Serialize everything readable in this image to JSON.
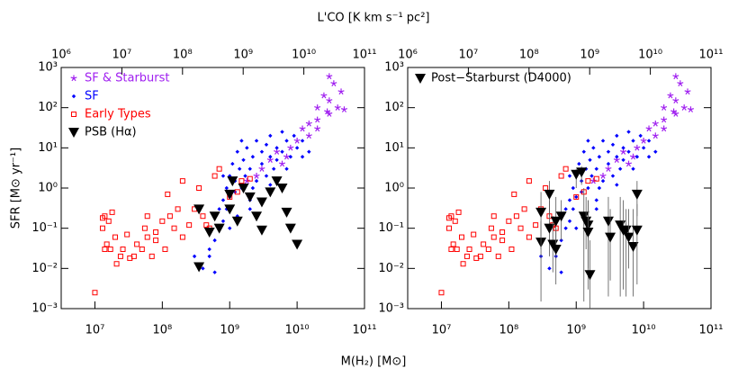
{
  "chart_data": [
    {
      "type": "scatter",
      "xlog": true,
      "ylog": true,
      "legend": "upper left",
      "x2label": "L'CO [K km s⁻¹ pc²]",
      "xlabel": "M(H₂) [M⊙]",
      "ylabel": "SFR [M⊙ yr⁻¹]",
      "xlim": [
        3160000.0,
        100000000000.0
      ],
      "ylim": [
        0.001,
        1000
      ],
      "x2lim": [
        1000000.0,
        100000000000.0
      ],
      "xticks": [
        {
          "value": 10000000.0,
          "label": "10⁷"
        },
        {
          "value": 100000000.0,
          "label": "10⁸"
        },
        {
          "value": 1000000000.0,
          "label": "10⁹"
        },
        {
          "value": 10000000000.0,
          "label": "10¹⁰"
        },
        {
          "value": 100000000000.0,
          "label": "10¹¹"
        }
      ],
      "x2ticks": [
        {
          "value": 1000000.0,
          "label": "10⁶"
        },
        {
          "value": 10000000.0,
          "label": "10⁷"
        },
        {
          "value": 100000000.0,
          "label": "10⁸"
        },
        {
          "value": 1000000000.0,
          "label": "10⁹"
        },
        {
          "value": 10000000000.0,
          "label": "10¹⁰"
        },
        {
          "value": 100000000000.0,
          "label": "10¹¹"
        }
      ],
      "yticks": [
        {
          "value": 0.001,
          "label": "10⁻³"
        },
        {
          "value": 0.01,
          "label": "10⁻²"
        },
        {
          "value": 0.1,
          "label": "10⁻¹"
        },
        {
          "value": 1,
          "label": "10⁰"
        },
        {
          "value": 10,
          "label": "10¹"
        },
        {
          "value": 100,
          "label": "10²"
        },
        {
          "value": 1000,
          "label": "10³"
        }
      ],
      "series": [
        {
          "name": "SF & Starburst",
          "color": "#a020f0",
          "marker": "star",
          "x": [
            3000000000.0,
            4000000000.0,
            5000000000.0,
            6000000000.0,
            8000000000.0,
            10000000000.0,
            12000000000.0,
            15000000000.0,
            20000000000.0,
            20000000000.0,
            25000000000.0,
            30000000000.0,
            30000000000.0,
            35000000000.0,
            40000000000.0,
            45000000000.0,
            50000000000.0,
            30000000000.0,
            20000000000.0,
            15000000000.0,
            2500000000.0,
            7000000000.0,
            1800000000.0,
            28000000000.0
          ],
          "y": [
            3,
            5,
            8,
            4,
            10,
            15,
            30,
            20,
            50,
            100,
            200,
            70,
            150,
            400,
            100,
            250,
            90,
            600,
            30,
            40,
            2,
            6,
            1.5,
            80
          ]
        },
        {
          "name": "SF",
          "color": "#0000ff",
          "marker": "diamond",
          "x": [
            500000000.0,
            600000000.0,
            700000000.0,
            700000000.0,
            800000000.0,
            800000000.0,
            900000000.0,
            900000000.0,
            1000000000.0,
            1000000000.0,
            1100000000.0,
            1200000000.0,
            1200000000.0,
            1300000000.0,
            1400000000.0,
            1500000000.0,
            1600000000.0,
            1700000000.0,
            1800000000.0,
            2000000000.0,
            2000000000.0,
            2200000000.0,
            2500000000.0,
            2500000000.0,
            3000000000.0,
            3000000000.0,
            3500000000.0,
            3500000000.0,
            4000000000.0,
            4000000000.0,
            4500000000.0,
            5000000000.0,
            5000000000.0,
            6000000000.0,
            6000000000.0,
            7000000000.0,
            7000000000.0,
            8000000000.0,
            9000000000.0,
            10000000000.0,
            12000000000.0,
            15000000000.0,
            400000000.0,
            500000000.0,
            600000000.0,
            300000000.0,
            1000000000.0,
            1300000000.0,
            2000000000.0,
            800000000.0,
            1500000000.0,
            2200000000.0,
            600000000.0,
            4000000000.0,
            12000000000.0
          ],
          "y": [
            0.02,
            0.05,
            0.1,
            0.3,
            0.5,
            0.15,
            1,
            0.3,
            2,
            0.6,
            4,
            1.5,
            0.8,
            8,
            3,
            1,
            5,
            2,
            10,
            0.5,
            3,
            6,
            15,
            1.5,
            4,
            8,
            2,
            12,
            6,
            20,
            3,
            10,
            5,
            25,
            8,
            3,
            15,
            6,
            20,
            10,
            6,
            8,
            0.01,
            0.03,
            0.008,
            0.02,
            0.1,
            0.2,
            0.3,
            2,
            15,
            1,
            0.2,
            1.2,
            15
          ]
        },
        {
          "name": "Early Types",
          "color": "#ff0000",
          "marker": "square",
          "x": [
            10000000.0,
            13000000.0,
            14000000.0,
            13000000.0,
            15000000.0,
            14000000.0,
            16000000.0,
            17000000.0,
            18000000.0,
            20000000.0,
            21000000.0,
            24000000.0,
            26000000.0,
            30000000.0,
            33000000.0,
            38000000.0,
            42000000.0,
            50000000.0,
            55000000.0,
            60000000.0,
            60000000.0,
            70000000.0,
            80000000.0,
            80000000.0,
            100000000.0,
            110000000.0,
            120000000.0,
            130000000.0,
            150000000.0,
            170000000.0,
            200000000.0,
            200000000.0,
            250000000.0,
            300000000.0,
            350000000.0,
            400000000.0,
            450000000.0,
            500000000.0,
            600000000.0,
            700000000.0,
            1000000000.0,
            1500000000.0,
            1300000000.0,
            2000000000.0
          ],
          "y": [
            0.0025,
            0.18,
            0.2,
            0.1,
            0.04,
            0.03,
            0.15,
            0.03,
            0.25,
            0.06,
            0.013,
            0.02,
            0.03,
            0.07,
            0.018,
            0.02,
            0.04,
            0.03,
            0.1,
            0.2,
            0.06,
            0.02,
            0.05,
            0.08,
            0.15,
            0.03,
            0.7,
            0.2,
            0.1,
            0.3,
            1.5,
            0.06,
            0.12,
            0.3,
            1,
            0.2,
            0.12,
            0.1,
            2,
            3,
            0.6,
            1.5,
            0.8,
            1.7
          ]
        },
        {
          "name": "PSB (Hα)",
          "color": "#000000",
          "marker": "triangle",
          "x": [
            350000000.0,
            350000000.0,
            500000000.0,
            600000000.0,
            700000000.0,
            1000000000.0,
            1000000000.0,
            1100000000.0,
            1300000000.0,
            1600000000.0,
            2000000000.0,
            2500000000.0,
            3000000000.0,
            3000000000.0,
            4000000000.0,
            5000000000.0,
            6000000000.0,
            7000000000.0,
            8000000000.0,
            10000000000.0
          ],
          "y": [
            0.3,
            0.011,
            0.08,
            0.2,
            0.1,
            0.7,
            0.3,
            1.5,
            0.15,
            1,
            0.6,
            0.2,
            0.09,
            0.45,
            0.8,
            1.5,
            1,
            0.25,
            0.1,
            0.04
          ]
        }
      ]
    },
    {
      "type": "scatter",
      "xlog": true,
      "ylog": true,
      "legend": "upper left",
      "xlim": [
        3160000.0,
        100000000000.0
      ],
      "ylim": [
        0.001,
        1000
      ],
      "x2lim": [
        1000000.0,
        100000000000.0
      ],
      "xticks": [
        {
          "value": 10000000.0,
          "label": "10⁷"
        },
        {
          "value": 100000000.0,
          "label": "10⁸"
        },
        {
          "value": 1000000000.0,
          "label": "10⁹"
        },
        {
          "value": 10000000000.0,
          "label": "10¹⁰"
        },
        {
          "value": 100000000000.0,
          "label": "10¹¹"
        }
      ],
      "x2ticks": [
        {
          "value": 1000000.0,
          "label": "10⁶"
        },
        {
          "value": 10000000.0,
          "label": "10⁷"
        },
        {
          "value": 100000000.0,
          "label": "10⁸"
        },
        {
          "value": 1000000000.0,
          "label": "10⁹"
        },
        {
          "value": 10000000000.0,
          "label": "10¹⁰"
        },
        {
          "value": 100000000000.0,
          "label": "10¹¹"
        }
      ],
      "yticks": [
        {
          "value": 0.001,
          "label": "10⁻³"
        },
        {
          "value": 0.01,
          "label": "10⁻²"
        },
        {
          "value": 0.1,
          "label": "10⁻¹"
        },
        {
          "value": 1,
          "label": "10⁰"
        },
        {
          "value": 10,
          "label": "10¹"
        },
        {
          "value": 100,
          "label": "10²"
        },
        {
          "value": 1000,
          "label": "10³"
        }
      ],
      "series": [
        {
          "color": "#a020f0",
          "marker": "star",
          "x": [
            3000000000.0,
            4000000000.0,
            5000000000.0,
            6000000000.0,
            8000000000.0,
            10000000000.0,
            12000000000.0,
            15000000000.0,
            20000000000.0,
            20000000000.0,
            25000000000.0,
            30000000000.0,
            30000000000.0,
            35000000000.0,
            40000000000.0,
            45000000000.0,
            50000000000.0,
            30000000000.0,
            20000000000.0,
            15000000000.0,
            2500000000.0,
            7000000000.0,
            1800000000.0,
            28000000000.0
          ],
          "y": [
            3,
            5,
            8,
            4,
            10,
            15,
            30,
            20,
            50,
            100,
            200,
            70,
            150,
            400,
            100,
            250,
            90,
            600,
            30,
            40,
            2,
            6,
            1.5,
            80
          ]
        },
        {
          "color": "#0000ff",
          "marker": "diamond",
          "x": [
            500000000.0,
            600000000.0,
            700000000.0,
            700000000.0,
            800000000.0,
            800000000.0,
            900000000.0,
            900000000.0,
            1000000000.0,
            1000000000.0,
            1100000000.0,
            1200000000.0,
            1200000000.0,
            1300000000.0,
            1400000000.0,
            1500000000.0,
            1600000000.0,
            1700000000.0,
            1800000000.0,
            2000000000.0,
            2000000000.0,
            2200000000.0,
            2500000000.0,
            2500000000.0,
            3000000000.0,
            3000000000.0,
            3500000000.0,
            3500000000.0,
            4000000000.0,
            4000000000.0,
            4500000000.0,
            5000000000.0,
            5000000000.0,
            6000000000.0,
            6000000000.0,
            7000000000.0,
            7000000000.0,
            8000000000.0,
            9000000000.0,
            10000000000.0,
            12000000000.0,
            15000000000.0,
            400000000.0,
            500000000.0,
            600000000.0,
            300000000.0,
            1000000000.0,
            1300000000.0,
            2000000000.0,
            800000000.0,
            1500000000.0,
            2200000000.0,
            600000000.0,
            4000000000.0,
            12000000000.0
          ],
          "y": [
            0.02,
            0.05,
            0.1,
            0.3,
            0.5,
            0.15,
            1,
            0.3,
            2,
            0.6,
            4,
            1.5,
            0.8,
            8,
            3,
            1,
            5,
            2,
            10,
            0.5,
            3,
            6,
            15,
            1.5,
            4,
            8,
            2,
            12,
            6,
            20,
            3,
            10,
            5,
            25,
            8,
            3,
            15,
            6,
            20,
            10,
            6,
            8,
            0.01,
            0.03,
            0.008,
            0.02,
            0.1,
            0.2,
            0.3,
            2,
            15,
            1,
            0.2,
            1.2,
            15
          ]
        },
        {
          "color": "#ff0000",
          "marker": "square",
          "x": [
            10000000.0,
            13000000.0,
            14000000.0,
            13000000.0,
            15000000.0,
            14000000.0,
            16000000.0,
            17000000.0,
            18000000.0,
            20000000.0,
            21000000.0,
            24000000.0,
            26000000.0,
            30000000.0,
            33000000.0,
            38000000.0,
            42000000.0,
            50000000.0,
            55000000.0,
            60000000.0,
            60000000.0,
            70000000.0,
            80000000.0,
            80000000.0,
            100000000.0,
            110000000.0,
            120000000.0,
            130000000.0,
            150000000.0,
            170000000.0,
            200000000.0,
            200000000.0,
            250000000.0,
            300000000.0,
            350000000.0,
            400000000.0,
            450000000.0,
            500000000.0,
            600000000.0,
            700000000.0,
            1000000000.0,
            1500000000.0,
            1300000000.0,
            2000000000.0
          ],
          "y": [
            0.0025,
            0.18,
            0.2,
            0.1,
            0.04,
            0.03,
            0.15,
            0.03,
            0.25,
            0.06,
            0.013,
            0.02,
            0.03,
            0.07,
            0.018,
            0.02,
            0.04,
            0.03,
            0.1,
            0.2,
            0.06,
            0.02,
            0.05,
            0.08,
            0.15,
            0.03,
            0.7,
            0.2,
            0.1,
            0.3,
            1.5,
            0.06,
            0.12,
            0.3,
            1,
            0.2,
            0.12,
            0.1,
            2,
            3,
            0.6,
            1.5,
            0.8,
            1.7
          ]
        },
        {
          "name": "Post−Starburst (D4000)",
          "color": "#000000",
          "marker": "triangle",
          "x": [
            300000000.0,
            300000000.0,
            400000000.0,
            450000000.0,
            400000000.0,
            500000000.0,
            500000000.0,
            600000000.0,
            1200000000.0,
            1300000000.0,
            1400000000.0,
            1500000000.0,
            1600000000.0,
            1500000000.0,
            3000000000.0,
            3200000000.0,
            4500000000.0,
            5000000000.0,
            5500000000.0,
            6000000000.0,
            7000000000.0,
            8000000000.0,
            8000000000.0,
            1000000000.0
          ],
          "y": [
            0.045,
            0.25,
            0.1,
            0.04,
            0.7,
            0.15,
            0.03,
            0.2,
            2.5,
            0.2,
            0.15,
            0.12,
            0.007,
            0.08,
            0.15,
            0.06,
            0.12,
            0.09,
            0.09,
            0.06,
            0.035,
            0.7,
            0.09,
            2.2
          ],
          "y_lower": [
            0.0015,
            0.03,
            0.02,
            0.008,
            0.2,
            0.02,
            0.004,
            0.05,
            1.2,
            0.0015,
            0.03,
            0.003,
            0.001,
            0.01,
            0.002,
            0.005,
            0.002,
            0.003,
            0.002,
            0.01,
            0.002,
            0.2,
            0.004,
            1
          ],
          "y_upper": [
            0.15,
            0.8,
            0.5,
            0.2,
            1.5,
            0.6,
            0.1,
            0.5,
            3.5,
            1,
            0.6,
            0.5,
            0.05,
            0.5,
            0.6,
            0.3,
            0.6,
            0.5,
            0.3,
            0.3,
            0.3,
            1.5,
            0.4,
            3
          ]
        }
      ]
    }
  ]
}
